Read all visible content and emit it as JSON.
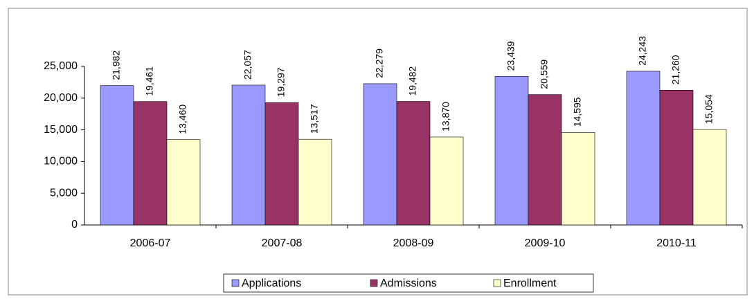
{
  "chart_data": {
    "type": "bar",
    "categories": [
      "2006-07",
      "2007-08",
      "2008-09",
      "2009-10",
      "2010-11"
    ],
    "series": [
      {
        "name": "Applications",
        "color": "#9999ff",
        "values": [
          21982,
          22057,
          22279,
          23439,
          24243
        ],
        "value_labels": [
          "21,982",
          "22,057",
          "22,279",
          "23,439",
          "24,243"
        ]
      },
      {
        "name": "Admissions",
        "color": "#993366",
        "values": [
          19461,
          19297,
          19482,
          20559,
          21260
        ],
        "value_labels": [
          "19,461",
          "19,297",
          "19,482",
          "20,559",
          "21,260"
        ]
      },
      {
        "name": "Enrollment",
        "color": "#ffffcc",
        "values": [
          13460,
          13517,
          13870,
          14595,
          15054
        ],
        "value_labels": [
          "13,460",
          "13,517",
          "13,870",
          "14,595",
          "15,054"
        ]
      }
    ],
    "ylim": [
      0,
      25000
    ],
    "yticks": [
      0,
      {
        "value": 5000,
        "label": "5,000"
      },
      {
        "value": 10000,
        "label": "10,000"
      },
      {
        "value": 15000,
        "label": "15,000"
      },
      {
        "value": 20000,
        "label": "20,000"
      },
      {
        "value": 25000,
        "label": "25,000"
      }
    ],
    "legend": "bottom"
  }
}
